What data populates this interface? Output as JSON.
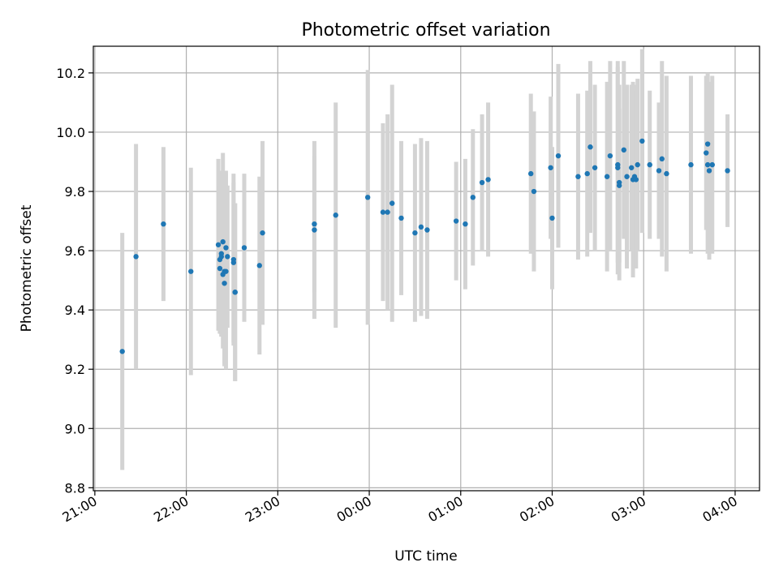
{
  "chart_data": {
    "type": "scatter",
    "title": "Photometric offset variation",
    "xlabel": "UTC time",
    "ylabel": "Photometric offset",
    "xlim": [
      "20:59",
      "04:16"
    ],
    "ylim": [
      8.79,
      10.29
    ],
    "grid": true,
    "x_ticks": [
      "21:00",
      "22:00",
      "23:00",
      "00:00",
      "01:00",
      "02:00",
      "03:00",
      "04:00"
    ],
    "y_ticks": [
      8.8,
      9.0,
      9.2,
      9.4,
      9.6,
      9.8,
      10.0,
      10.2
    ],
    "y_tick_labels": [
      "8.8",
      "9.0",
      "9.2",
      "9.4",
      "9.6",
      "9.8",
      "10.0",
      "10.2"
    ],
    "colors": {
      "point": "#1f77b4",
      "errorbar": "#d3d3d3",
      "grid": "#b0b0b0"
    },
    "series": [
      {
        "x": [
          "21:18",
          "21:27",
          "21:45",
          "22:03",
          "22:21",
          "22:22",
          "22:22",
          "22:23",
          "22:23",
          "22:24",
          "22:24",
          "22:25",
          "22:25",
          "22:26",
          "22:26",
          "22:27",
          "22:31",
          "22:31",
          "22:32",
          "22:32",
          "22:38",
          "22:48",
          "22:50",
          "23:24",
          "23:24",
          "23:38",
          "23:59",
          "00:09",
          "00:12",
          "00:15",
          "00:21",
          "00:30",
          "00:34",
          "00:38",
          "00:57",
          "01:03",
          "01:08",
          "01:14",
          "01:18",
          "01:46",
          "01:48",
          "01:59",
          "02:00",
          "02:04",
          "02:17",
          "02:23",
          "02:25",
          "02:28",
          "02:36",
          "02:38",
          "02:43",
          "02:43",
          "02:44",
          "02:44",
          "02:47",
          "02:49",
          "02:52",
          "02:53",
          "02:54",
          "02:55",
          "02:56",
          "02:59",
          "03:04",
          "03:10",
          "03:12",
          "03:15",
          "03:31",
          "03:41",
          "03:42",
          "03:42",
          "03:43",
          "03:45",
          "03:55"
        ],
        "y": [
          9.26,
          9.58,
          9.69,
          9.53,
          9.62,
          9.54,
          9.57,
          9.58,
          9.59,
          9.52,
          9.63,
          9.49,
          9.53,
          9.53,
          9.61,
          9.58,
          9.56,
          9.57,
          9.46,
          9.46,
          9.61,
          9.55,
          9.66,
          9.69,
          9.67,
          9.72,
          9.78,
          9.73,
          9.73,
          9.76,
          9.71,
          9.66,
          9.68,
          9.67,
          9.7,
          9.69,
          9.78,
          9.83,
          9.84,
          9.86,
          9.8,
          9.88,
          9.71,
          9.92,
          9.85,
          9.86,
          9.95,
          9.88,
          9.85,
          9.92,
          9.89,
          9.88,
          9.83,
          9.82,
          9.94,
          9.85,
          9.88,
          9.84,
          9.85,
          9.84,
          9.89,
          9.97,
          9.89,
          9.87,
          9.91,
          9.86,
          9.89,
          9.93,
          9.89,
          9.96,
          9.87,
          9.89,
          9.87
        ],
        "err": [
          0.4,
          0.38,
          0.26,
          0.35,
          0.29,
          0.22,
          0.25,
          0.27,
          0.28,
          0.25,
          0.3,
          0.28,
          0.31,
          0.33,
          0.26,
          0.24,
          0.27,
          0.29,
          0.3,
          0.3,
          0.25,
          0.3,
          0.31,
          0.23,
          0.3,
          0.38,
          0.43,
          0.3,
          0.33,
          0.4,
          0.26,
          0.3,
          0.3,
          0.3,
          0.2,
          0.22,
          0.23,
          0.23,
          0.26,
          0.27,
          0.27,
          0.24,
          0.24,
          0.31,
          0.28,
          0.28,
          0.29,
          0.28,
          0.32,
          0.32,
          0.33,
          0.36,
          0.33,
          0.26,
          0.3,
          0.31,
          0.28,
          0.33,
          0.31,
          0.3,
          0.29,
          0.31,
          0.25,
          0.23,
          0.33,
          0.33,
          0.3,
          0.26,
          0.3,
          0.24,
          0.3,
          0.3,
          0.19
        ]
      }
    ]
  }
}
